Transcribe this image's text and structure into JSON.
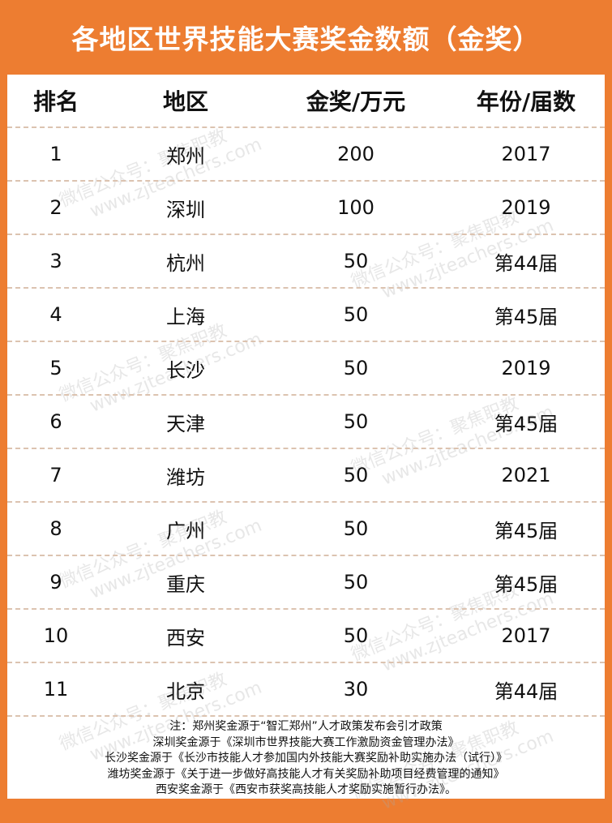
{
  "title": "各地区世界技能大赛奖金数额（金奖）",
  "table": {
    "headers": [
      "排名",
      "地区",
      "金奖/万元",
      "年份/届数"
    ],
    "rows": [
      [
        "1",
        "郑州",
        "200",
        "2017"
      ],
      [
        "2",
        "深圳",
        "100",
        "2019"
      ],
      [
        "3",
        "杭州",
        "50",
        "第44届"
      ],
      [
        "4",
        "上海",
        "50",
        "第45届"
      ],
      [
        "5",
        "长沙",
        "50",
        "2019"
      ],
      [
        "6",
        "天津",
        "50",
        "第45届"
      ],
      [
        "7",
        "潍坊",
        "50",
        "2021"
      ],
      [
        "8",
        "广州",
        "50",
        "第45届"
      ],
      [
        "9",
        "重庆",
        "50",
        "第45届"
      ],
      [
        "10",
        "西安",
        "50",
        "2017"
      ],
      [
        "11",
        "北京",
        "30",
        "第44届"
      ]
    ]
  },
  "notes": [
    "注：郑州奖金源于“智汇郑州”人才政策发布会引才政策",
    "深圳奖金源于《深圳市世界技能大赛工作激励资金管理办法》",
    "长沙奖金源于《长沙市技能人才参加国内外技能大赛奖励补助实施办法（试行）》",
    "潍坊奖金源于《关于进一步做好高技能人才有关奖励补助项目经费管理的通知》",
    "西安奖金源于《西安市获奖高技能人才奖励实施暂行办法》。"
  ],
  "watermark": {
    "line1": "微信公众号：聚焦职教",
    "line2": "www.zjteachers.com"
  },
  "colors": {
    "accent": "#ed7d31",
    "divider": "#dcc3b0"
  }
}
